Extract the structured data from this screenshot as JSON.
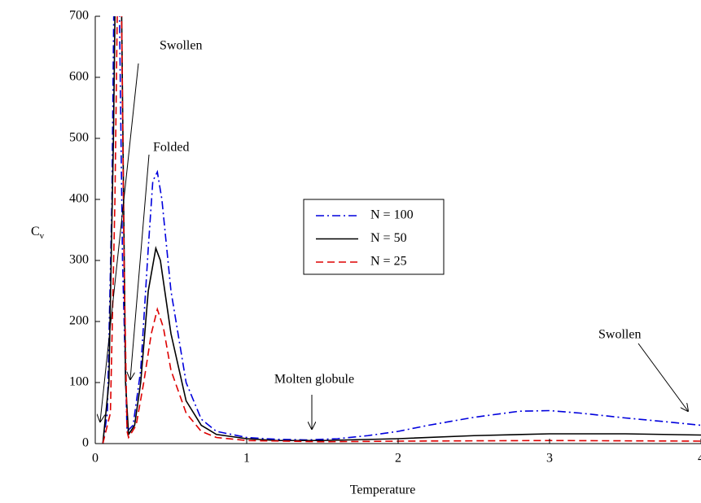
{
  "chart_data": {
    "type": "line",
    "xlabel": "Temperature",
    "ylabel": {
      "main": "C",
      "subscript": "v"
    },
    "xlim": [
      0,
      4
    ],
    "ylim": [
      0,
      700
    ],
    "xticks": [
      0,
      1,
      2,
      3,
      4
    ],
    "yticks": [
      0,
      100,
      200,
      300,
      400,
      500,
      600,
      700
    ],
    "series": [
      {
        "name": "N = 100",
        "color": "#0000dd",
        "dash": "dash-dot",
        "x": [
          0.05,
          0.08,
          0.11,
          0.13,
          0.15,
          0.18,
          0.21,
          0.25,
          0.3,
          0.35,
          0.38,
          0.41,
          0.44,
          0.5,
          0.6,
          0.7,
          0.8,
          1.0,
          1.2,
          1.4,
          1.6,
          1.8,
          2.0,
          2.2,
          2.5,
          2.8,
          3.0,
          3.2,
          3.5,
          3.8,
          4.0
        ],
        "values": [
          0,
          50,
          400,
          900,
          900,
          300,
          20,
          30,
          120,
          320,
          430,
          445,
          400,
          250,
          100,
          40,
          20,
          10,
          7,
          6,
          8,
          13,
          20,
          30,
          43,
          53,
          54,
          50,
          42,
          35,
          30
        ]
      },
      {
        "name": "N = 50",
        "color": "#000000",
        "dash": "solid",
        "x": [
          0.05,
          0.09,
          0.12,
          0.14,
          0.17,
          0.2,
          0.22,
          0.26,
          0.3,
          0.35,
          0.4,
          0.43,
          0.5,
          0.6,
          0.7,
          0.8,
          1.0,
          1.2,
          1.5,
          2.0,
          2.5,
          3.0,
          3.5,
          4.0
        ],
        "values": [
          0,
          100,
          500,
          900,
          800,
          100,
          15,
          30,
          100,
          250,
          320,
          300,
          180,
          70,
          30,
          15,
          8,
          5,
          5,
          8,
          13,
          16,
          16,
          14
        ]
      },
      {
        "name": "N = 25",
        "color": "#dd0000",
        "dash": "dashed",
        "x": [
          0.05,
          0.1,
          0.13,
          0.15,
          0.17,
          0.19,
          0.21,
          0.22,
          0.27,
          0.32,
          0.37,
          0.41,
          0.45,
          0.5,
          0.6,
          0.7,
          0.8,
          1.0,
          1.5,
          2.0,
          3.0,
          4.0
        ],
        "values": [
          0,
          50,
          400,
          800,
          800,
          300,
          20,
          10,
          30,
          100,
          180,
          220,
          190,
          120,
          50,
          20,
          10,
          5,
          3,
          4,
          5,
          4
        ]
      }
    ],
    "annotations": [
      "Swollen",
      "Folded",
      "Molten globule",
      "Swollen"
    ]
  }
}
